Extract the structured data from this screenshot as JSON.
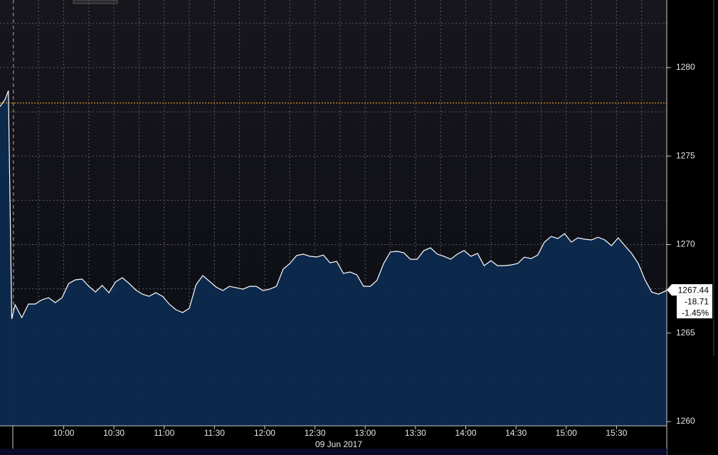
{
  "chart_data": {
    "type": "area",
    "xlabel": "09 Jun 2017",
    "x": [
      "09:22",
      "09:25",
      "09:27",
      "09:29",
      "09:31",
      "09:35",
      "09:39",
      "09:43",
      "09:47",
      "09:51",
      "09:55",
      "09:59",
      "10:03",
      "10:07",
      "10:11",
      "10:15",
      "10:19",
      "10:23",
      "10:27",
      "10:31",
      "10:35",
      "10:39",
      "10:43",
      "10:47",
      "10:51",
      "10:55",
      "10:59",
      "11:03",
      "11:07",
      "11:11",
      "11:15",
      "11:19",
      "11:23",
      "11:27",
      "11:31",
      "11:35",
      "11:39",
      "11:43",
      "11:47",
      "11:51",
      "11:55",
      "11:59",
      "12:03",
      "12:07",
      "12:11",
      "12:15",
      "12:19",
      "12:23",
      "12:27",
      "12:31",
      "12:35",
      "12:39",
      "12:43",
      "12:47",
      "12:51",
      "12:55",
      "12:59",
      "13:03",
      "13:07",
      "13:11",
      "13:15",
      "13:19",
      "13:23",
      "13:27",
      "13:31",
      "13:35",
      "13:39",
      "13:43",
      "13:47",
      "13:51",
      "13:55",
      "13:59",
      "14:03",
      "14:07",
      "14:11",
      "14:15",
      "14:19",
      "14:23",
      "14:27",
      "14:31",
      "14:35",
      "14:39",
      "14:43",
      "14:47",
      "14:51",
      "14:55",
      "14:59",
      "15:03",
      "15:07",
      "15:11",
      "15:15",
      "15:19",
      "15:23",
      "15:27",
      "15:31",
      "15:35",
      "15:39",
      "15:43",
      "15:47",
      "15:51",
      "15:55",
      "15:59",
      "16:00"
    ],
    "values": [
      1277.8,
      1278.2,
      1278.7,
      1265.8,
      1266.6,
      1265.87,
      1266.64,
      1266.64,
      1266.88,
      1267.0,
      1266.72,
      1267.0,
      1267.8,
      1268.01,
      1268.05,
      1267.64,
      1267.32,
      1267.69,
      1267.28,
      1267.89,
      1268.13,
      1267.81,
      1267.44,
      1267.2,
      1267.08,
      1267.28,
      1267.08,
      1266.64,
      1266.32,
      1266.16,
      1266.4,
      1267.72,
      1268.25,
      1267.93,
      1267.6,
      1267.4,
      1267.64,
      1267.56,
      1267.48,
      1267.64,
      1267.64,
      1267.4,
      1267.48,
      1267.64,
      1268.61,
      1268.93,
      1269.38,
      1269.46,
      1269.34,
      1269.3,
      1269.41,
      1268.97,
      1269.05,
      1268.37,
      1268.45,
      1268.29,
      1267.64,
      1267.64,
      1267.97,
      1268.93,
      1269.58,
      1269.62,
      1269.54,
      1269.17,
      1269.17,
      1269.66,
      1269.82,
      1269.46,
      1269.34,
      1269.17,
      1269.46,
      1269.66,
      1269.34,
      1269.5,
      1268.81,
      1269.09,
      1268.81,
      1268.81,
      1268.85,
      1268.93,
      1269.29,
      1269.21,
      1269.41,
      1270.14,
      1270.46,
      1270.34,
      1270.62,
      1270.14,
      1270.38,
      1270.3,
      1270.26,
      1270.42,
      1270.26,
      1269.94,
      1270.38,
      1269.94,
      1269.5,
      1268.93,
      1268.01,
      1267.32,
      1267.2,
      1267.36,
      1267.44
    ],
    "line_color": "#ffffff",
    "fill_color": "#0d2b4f",
    "xlim": [
      "09:22",
      "16:00"
    ],
    "xticks": [
      "10:00",
      "10:30",
      "11:00",
      "11:30",
      "12:00",
      "12:30",
      "13:00",
      "13:30",
      "14:00",
      "14:30",
      "15:00",
      "15:30"
    ],
    "x_gridlines": [
      "09:30",
      "09:45",
      "10:00",
      "10:15",
      "10:30",
      "10:45",
      "11:00",
      "11:15",
      "11:30",
      "11:45",
      "12:00",
      "12:15",
      "12:30",
      "12:45",
      "13:00",
      "13:15",
      "13:30",
      "13:45",
      "14:00",
      "14:15",
      "14:30",
      "14:45",
      "15:00",
      "15:15",
      "15:30",
      "15:45"
    ],
    "ylim": [
      1259.76,
      1283.82
    ],
    "yticks": [
      1260,
      1265,
      1270,
      1275,
      1280
    ],
    "y_gridlines": [
      1260,
      1262.5,
      1265,
      1267.5,
      1270,
      1272.5,
      1275,
      1277.5,
      1280,
      1282.5
    ],
    "grid": true,
    "reference_line": {
      "value": 1278,
      "color": "#d9901e"
    },
    "last_price": {
      "price": "1267.44",
      "change": "-18.71",
      "change_pct": "-1.45%"
    }
  }
}
